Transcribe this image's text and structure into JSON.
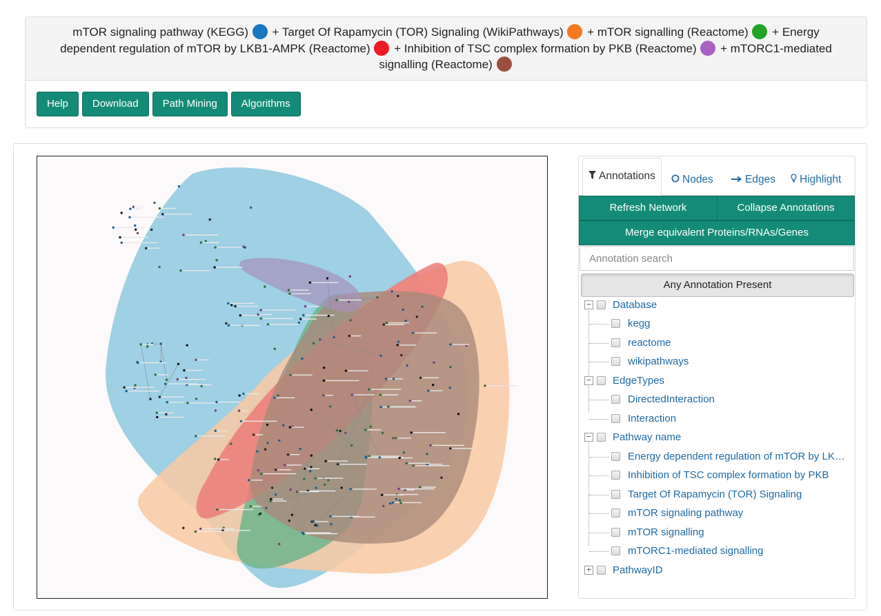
{
  "header": {
    "segments": [
      {
        "text": "mTOR signaling pathway (KEGG)",
        "color": "#1976c1"
      },
      {
        "text": "+ Target Of Rapamycin (TOR) Signaling (WikiPathways)",
        "color": "#f47921"
      },
      {
        "text": "+ mTOR signalling (Reactome)",
        "color": "#21a229"
      },
      {
        "text": "+ Energy dependent regulation of mTOR by LKB1-AMPK (Reactome)",
        "color": "#ec1b24"
      },
      {
        "text": "+ Inhibition of TSC complex formation by PKB (Reactome)",
        "color": "#a663c2"
      },
      {
        "text": "+ mTORC1-mediated signalling (Reactome)",
        "color": "#9a4f3f"
      }
    ]
  },
  "toolbar": {
    "help": "Help",
    "download": "Download",
    "path_mining": "Path Mining",
    "algorithms": "Algorithms"
  },
  "network": {
    "hull_colors": {
      "blue": "#8ec9e0",
      "orange": "#f8c9a3",
      "green": "#6fb58a",
      "red": "#ec7d7a",
      "brown": "#a9897c",
      "purple": "#a592b9"
    }
  },
  "side": {
    "tabs": {
      "annotations": "Annotations",
      "nodes": "Nodes",
      "edges": "Edges",
      "highlight": "Highlight"
    },
    "refresh": "Refresh Network",
    "collapse": "Collapse Annotations",
    "merge": "Merge equivalent Proteins/RNAs/Genes",
    "search_placeholder": "Annotation search",
    "any_annotation": "Any Annotation Present",
    "tree": {
      "database": {
        "label": "Database",
        "items": [
          "kegg",
          "reactome",
          "wikipathways"
        ]
      },
      "edge_types": {
        "label": "EdgeTypes",
        "items": [
          "DirectedInteraction",
          "Interaction"
        ]
      },
      "pathway_name": {
        "label": "Pathway name",
        "items": [
          "Energy dependent regulation of mTOR by LK…",
          "Inhibition of TSC complex formation by PKB",
          "Target Of Rapamycin (TOR) Signaling",
          "mTOR signaling pathway",
          "mTOR signalling",
          "mTORC1-mediated signalling"
        ]
      },
      "pathway_id": {
        "label": "PathwayID"
      }
    }
  }
}
